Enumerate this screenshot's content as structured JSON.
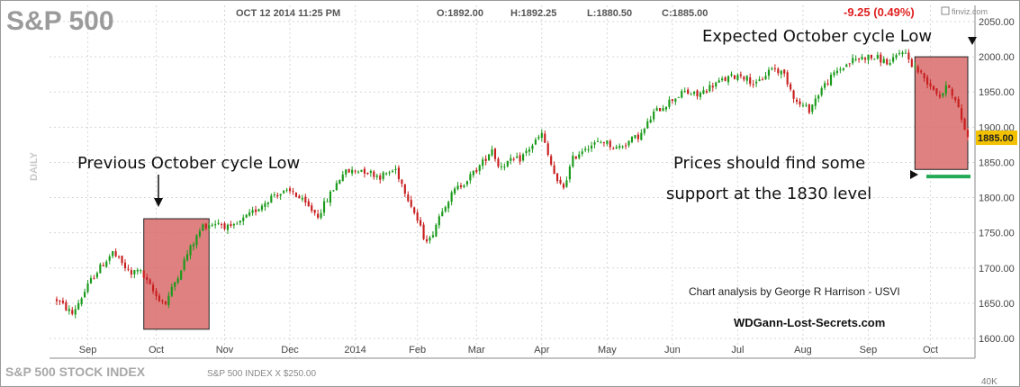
{
  "header": {
    "ticker": "S&P 500",
    "datetime": "OCT 12 2014 11:25 PM",
    "open": "O:1892.00",
    "high": "H:1892.25",
    "low": "L:1880.50",
    "close": "C:1885.00",
    "change": "-9.25 (0.49%)",
    "source": "finviz.com",
    "period": "DAILY"
  },
  "footer": {
    "index_name": "S&P 500 STOCK INDEX",
    "index_info": "S&P 500 INDEX X $250.00",
    "volume_label": "40K"
  },
  "annotations": {
    "expected_low": "Expected October cycle Low",
    "previous_low": "Previous October cycle Low",
    "support_line1": "Prices should find some",
    "support_line2": "support at the 1830 level",
    "credit": "Chart analysis by George R Harrison - USVI",
    "website": "WDGann-Lost-Secrets.com"
  },
  "colors": {
    "up": "#1a9a1a",
    "down": "#c81e1e",
    "highlight_box": "#d96b6b",
    "support_line": "#22aa55",
    "current_price_tag": "#f2c200",
    "change_text": "#e02020"
  },
  "chart_data": {
    "type": "candlestick",
    "title": "S&P 500",
    "ylim": [
      1600,
      2050
    ],
    "yticks": [
      1600,
      1650,
      1700,
      1750,
      1800,
      1850,
      1900,
      1950,
      2000,
      2050
    ],
    "ytick_labels": [
      "1600.00",
      "1650.00",
      "1700.00",
      "1750.00",
      "1800.00",
      "1850.00",
      "1900.00",
      "1950.00",
      "2000.00",
      "2050.00"
    ],
    "current_price": 1885,
    "current_price_label": "1885.00",
    "support_level": 1830,
    "grid": true,
    "months": [
      {
        "label": "Sep",
        "day": 10
      },
      {
        "label": "Oct",
        "day": 32
      },
      {
        "label": "Nov",
        "day": 54
      },
      {
        "label": "Dec",
        "day": 75
      },
      {
        "label": "2014",
        "day": 96
      },
      {
        "label": "Feb",
        "day": 116
      },
      {
        "label": "Mar",
        "day": 135
      },
      {
        "label": "Apr",
        "day": 156
      },
      {
        "label": "May",
        "day": 177
      },
      {
        "label": "Jun",
        "day": 198
      },
      {
        "label": "Jul",
        "day": 219
      },
      {
        "label": "Aug",
        "day": 240
      },
      {
        "label": "Sep",
        "day": 261
      },
      {
        "label": "Oct",
        "day": 281
      }
    ],
    "trend": [
      [
        0,
        1655
      ],
      [
        5,
        1635
      ],
      [
        12,
        1690
      ],
      [
        18,
        1722
      ],
      [
        24,
        1690
      ],
      [
        26,
        1700
      ],
      [
        32,
        1660
      ],
      [
        35,
        1650
      ],
      [
        42,
        1720
      ],
      [
        47,
        1760
      ],
      [
        52,
        1765
      ],
      [
        56,
        1755
      ],
      [
        62,
        1775
      ],
      [
        70,
        1805
      ],
      [
        76,
        1808
      ],
      [
        80,
        1790
      ],
      [
        84,
        1775
      ],
      [
        88,
        1805
      ],
      [
        92,
        1835
      ],
      [
        98,
        1840
      ],
      [
        104,
        1830
      ],
      [
        109,
        1840
      ],
      [
        114,
        1790
      ],
      [
        118,
        1745
      ],
      [
        120,
        1740
      ],
      [
        124,
        1785
      ],
      [
        128,
        1810
      ],
      [
        133,
        1830
      ],
      [
        137,
        1850
      ],
      [
        140,
        1870
      ],
      [
        142,
        1845
      ],
      [
        145,
        1850
      ],
      [
        149,
        1855
      ],
      [
        153,
        1875
      ],
      [
        156,
        1890
      ],
      [
        158,
        1860
      ],
      [
        161,
        1820
      ],
      [
        163,
        1815
      ],
      [
        166,
        1855
      ],
      [
        170,
        1872
      ],
      [
        176,
        1880
      ],
      [
        180,
        1870
      ],
      [
        184,
        1880
      ],
      [
        188,
        1890
      ],
      [
        192,
        1920
      ],
      [
        198,
        1940
      ],
      [
        202,
        1950
      ],
      [
        206,
        1945
      ],
      [
        211,
        1960
      ],
      [
        216,
        1970
      ],
      [
        220,
        1975
      ],
      [
        225,
        1960
      ],
      [
        230,
        1985
      ],
      [
        234,
        1975
      ],
      [
        238,
        1935
      ],
      [
        242,
        1925
      ],
      [
        246,
        1955
      ],
      [
        251,
        1980
      ],
      [
        256,
        1995
      ],
      [
        260,
        2000
      ],
      [
        264,
        1998
      ],
      [
        268,
        1990
      ],
      [
        272,
        2010
      ],
      [
        275,
        1990
      ],
      [
        278,
        1975
      ],
      [
        281,
        1960
      ],
      [
        284,
        1945
      ],
      [
        287,
        1960
      ],
      [
        290,
        1925
      ],
      [
        293,
        1885
      ]
    ],
    "last_day": 293,
    "boxes": [
      {
        "start_day": 28,
        "end_day": 49,
        "top": 1770,
        "bottom": 1613
      },
      {
        "start_day": 276,
        "end_day": 293,
        "top": 2000,
        "bottom": 1840
      }
    ]
  }
}
